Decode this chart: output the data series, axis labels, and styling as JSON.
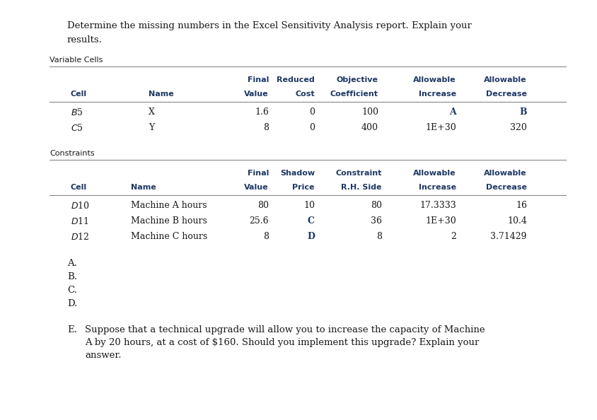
{
  "title_line1": "Determine the missing numbers in the Excel Sensitivity Analysis report. Explain your",
  "title_line2": "results.",
  "bg_color": "#ffffff",
  "text_color": "#1a1a1a",
  "blue_color": "#1F3864",
  "section1_label": "Variable Cells",
  "section2_label": "Constraints",
  "var_header_row1": [
    "",
    "",
    "Final",
    "Reduced",
    "Objective",
    "Allowable",
    "Allowable"
  ],
  "var_header_row2": [
    "Cell",
    "Name",
    "Value",
    "Cost",
    "Coefficient",
    "Increase",
    "Decrease"
  ],
  "var_data": [
    [
      "$B$5",
      "X",
      "1.6",
      "0",
      "100",
      "A",
      "B"
    ],
    [
      "$C$5",
      "Y",
      "8",
      "0",
      "400",
      "1E+30",
      "320"
    ]
  ],
  "con_header_row1": [
    "",
    "",
    "Final",
    "Shadow",
    "Constraint",
    "Allowable",
    "Allowable"
  ],
  "con_header_row2": [
    "Cell",
    "Name",
    "Value",
    "Price",
    "R.H. Side",
    "Increase",
    "Decrease"
  ],
  "con_data": [
    [
      "$D$10",
      "Machine A hours",
      "80",
      "10",
      "80",
      "17.3333",
      "16"
    ],
    [
      "$D$11",
      "Machine B hours",
      "25.6",
      "C",
      "36",
      "1E+30",
      "10.4"
    ],
    [
      "$D$12",
      "Machine C hours",
      "8",
      "D",
      "8",
      "2",
      "3.71429"
    ]
  ],
  "letters": [
    "A.",
    "B.",
    "C.",
    "D."
  ],
  "note_letter": "E.",
  "note_text_line1": "Suppose that a technical upgrade will allow you to increase the capacity of Machine",
  "note_text_line2": "A by 20 hours, at a cost of $160. Should you implement this upgrade? Explain your",
  "note_text_line3": "answer."
}
